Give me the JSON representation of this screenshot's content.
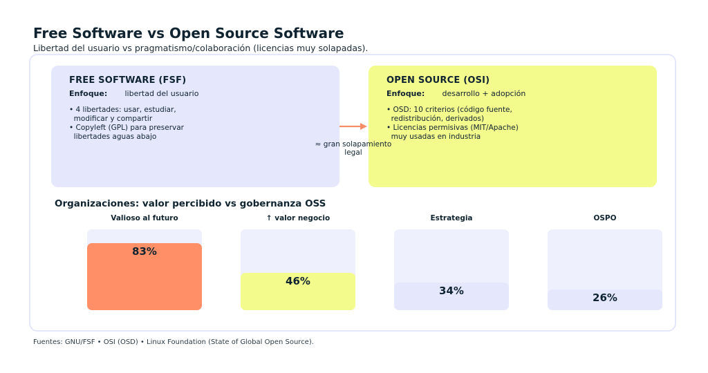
{
  "header": {
    "title": "Free Software vs Open Source Software",
    "subtitle": "Libertad del usuario vs pragmatismo/colaboración (licencias muy solapadas)."
  },
  "fsf": {
    "title": "FREE SOFTWARE (FSF)",
    "focus_label": "Enfoque:",
    "focus_value": "libertad del usuario",
    "bullets": [
      "• 4 libertades: usar, estudiar,\n  modificar y compartir",
      "• Copyleft (GPL) para preservar\n  libertades aguas abajo"
    ]
  },
  "osi": {
    "title": "OPEN SOURCE (OSI)",
    "focus_label": "Enfoque:",
    "focus_value": "desarrollo + adopción",
    "bullets": [
      "• OSD: 10 criterios (código fuente,\n  redistribución, derivados)",
      "• Licencias permisivas (MIT/Apache)\n  muy usadas en industria"
    ]
  },
  "overlap": {
    "label": "≈ gran solapamiento\nlegal"
  },
  "section": {
    "title": "Organizaciones: valor percibido vs gobernanza OSS"
  },
  "metrics": [
    {
      "label": "Valioso al futuro",
      "value": 83,
      "display": "83%",
      "color": "#ff8f66"
    },
    {
      "label": "↑ valor negocio",
      "value": 46,
      "display": "46%",
      "color": "#f3fb8c"
    },
    {
      "label": "Estrategia",
      "value": 34,
      "display": "34%",
      "color": "#e5e8fd"
    },
    {
      "label": "OSPO",
      "value": 26,
      "display": "26%",
      "color": "#e5e8fd"
    }
  ],
  "colors": {
    "accent_arrow": "#f78d66",
    "track": "#eff0fd",
    "frame": "#e4e6fb"
  },
  "footer": "Fuentes: GNU/FSF • OSI (OSD) • Linux Foundation (State of Global Open Source)."
}
